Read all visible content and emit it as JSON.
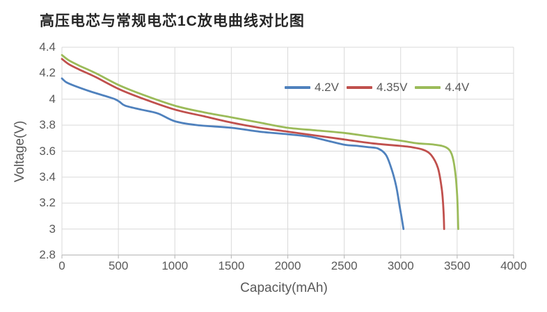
{
  "title": "高压电芯与常规电芯1C放电曲线对比图",
  "chart_data": {
    "type": "line",
    "title": "高压电芯与常规电芯1C放电曲线对比图",
    "xlabel": "Capacity(mAh)",
    "ylabel": "Voltage(V)",
    "xlim": [
      0,
      4000
    ],
    "ylim": [
      2.8,
      4.4
    ],
    "x_ticks": [
      0,
      500,
      1000,
      1500,
      2000,
      2500,
      3000,
      3500,
      4000
    ],
    "y_ticks": [
      2.8,
      3,
      3.2,
      3.4,
      3.6,
      3.8,
      4,
      4.2,
      4.4
    ],
    "grid": true,
    "legend_position": "top-right-inside",
    "series": [
      {
        "name": "4.2V",
        "color": "#4F81BD",
        "points": [
          [
            0,
            4.16
          ],
          [
            40,
            4.13
          ],
          [
            120,
            4.1
          ],
          [
            250,
            4.06
          ],
          [
            400,
            4.02
          ],
          [
            470,
            4.0
          ],
          [
            510,
            3.98
          ],
          [
            560,
            3.95
          ],
          [
            700,
            3.92
          ],
          [
            850,
            3.89
          ],
          [
            1000,
            3.83
          ],
          [
            1200,
            3.8
          ],
          [
            1500,
            3.78
          ],
          [
            1750,
            3.75
          ],
          [
            2000,
            3.73
          ],
          [
            2200,
            3.71
          ],
          [
            2350,
            3.68
          ],
          [
            2500,
            3.65
          ],
          [
            2620,
            3.64
          ],
          [
            2720,
            3.63
          ],
          [
            2800,
            3.62
          ],
          [
            2870,
            3.57
          ],
          [
            2920,
            3.46
          ],
          [
            2960,
            3.33
          ],
          [
            2990,
            3.18
          ],
          [
            3010,
            3.08
          ],
          [
            3025,
            3.0
          ]
        ]
      },
      {
        "name": "4.35V",
        "color": "#C0504D",
        "points": [
          [
            0,
            4.31
          ],
          [
            60,
            4.27
          ],
          [
            150,
            4.23
          ],
          [
            300,
            4.17
          ],
          [
            500,
            4.08
          ],
          [
            700,
            4.01
          ],
          [
            1000,
            3.92
          ],
          [
            1250,
            3.87
          ],
          [
            1500,
            3.82
          ],
          [
            1750,
            3.78
          ],
          [
            2000,
            3.75
          ],
          [
            2250,
            3.72
          ],
          [
            2500,
            3.69
          ],
          [
            2750,
            3.66
          ],
          [
            3000,
            3.64
          ],
          [
            3100,
            3.63
          ],
          [
            3200,
            3.61
          ],
          [
            3270,
            3.57
          ],
          [
            3330,
            3.47
          ],
          [
            3365,
            3.3
          ],
          [
            3380,
            3.13
          ],
          [
            3385,
            3.0
          ]
        ]
      },
      {
        "name": "4.4V",
        "color": "#9BBB59",
        "points": [
          [
            0,
            4.34
          ],
          [
            60,
            4.3
          ],
          [
            150,
            4.26
          ],
          [
            300,
            4.2
          ],
          [
            500,
            4.11
          ],
          [
            700,
            4.04
          ],
          [
            1000,
            3.95
          ],
          [
            1250,
            3.9
          ],
          [
            1500,
            3.86
          ],
          [
            1750,
            3.82
          ],
          [
            2000,
            3.78
          ],
          [
            2250,
            3.76
          ],
          [
            2500,
            3.74
          ],
          [
            2750,
            3.71
          ],
          [
            3000,
            3.68
          ],
          [
            3150,
            3.66
          ],
          [
            3300,
            3.65
          ],
          [
            3400,
            3.63
          ],
          [
            3450,
            3.58
          ],
          [
            3480,
            3.46
          ],
          [
            3500,
            3.26
          ],
          [
            3510,
            3.0
          ]
        ]
      }
    ]
  },
  "styles": {
    "background": "#ffffff",
    "grid_color": "#d9d9d9",
    "axis_line_color": "#bdbdbd",
    "tick_text_color": "#595959",
    "axis_title_color": "#595959",
    "legend_text_color": "#595959",
    "title_color": "#262626"
  }
}
